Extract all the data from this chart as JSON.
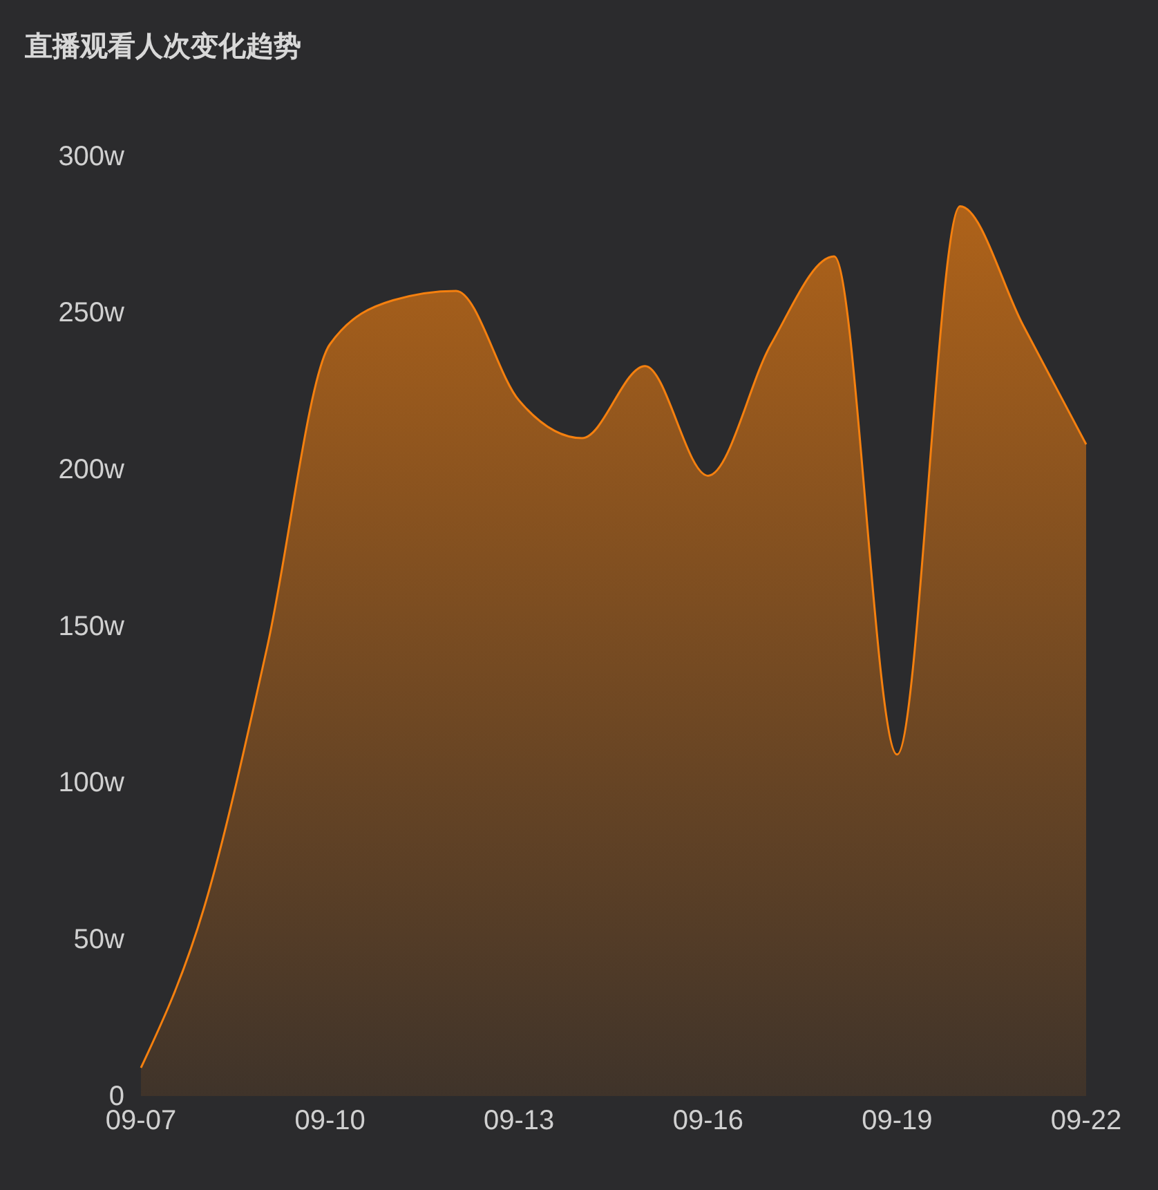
{
  "chart_data": {
    "type": "area",
    "title": "直播观看人次变化趋势",
    "categories": [
      "09-07",
      null,
      null,
      "09-10",
      null,
      null,
      "09-13",
      null,
      null,
      "09-16",
      null,
      null,
      "09-19",
      null,
      null,
      "09-22"
    ],
    "series": [
      {
        "color": "#f5800f",
        "values": [
          9,
          60,
          143,
          240,
          254,
          257,
          222,
          210,
          233,
          198,
          240,
          268,
          109,
          284,
          246,
          208
        ]
      }
    ],
    "ylim": [
      0,
      300
    ],
    "yticks": [
      0,
      {
        "value": 50,
        "label": "50w"
      },
      {
        "value": 100,
        "label": "100w"
      },
      {
        "value": 150,
        "label": "150w"
      },
      {
        "value": 200,
        "label": "200w"
      },
      {
        "value": 250,
        "label": "250w"
      },
      {
        "value": 300,
        "label": "300w"
      }
    ],
    "grid": false
  }
}
